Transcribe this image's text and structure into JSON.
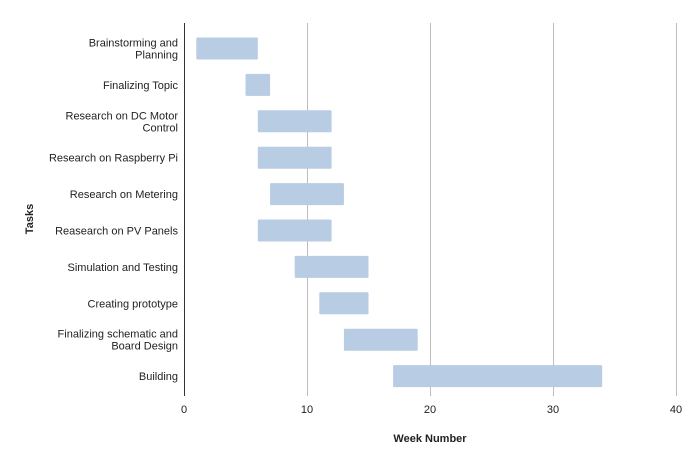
{
  "chart_data": {
    "type": "bar",
    "orientation": "horizontal-gantt",
    "title": "",
    "xlabel": "Week Number",
    "ylabel": "Tasks",
    "xlim": [
      0,
      40
    ],
    "xticks": [
      0,
      10,
      20,
      30,
      40
    ],
    "grid": "vertical",
    "bar_color": "#b8cce4",
    "tasks": [
      {
        "label": "Brainstorming and Planning",
        "lines": [
          "Brainstorming and",
          "Planning"
        ],
        "start": 1,
        "end": 6
      },
      {
        "label": "Finalizing Topic",
        "lines": [
          "Finalizing Topic"
        ],
        "start": 5,
        "end": 7
      },
      {
        "label": "Research on DC Motor Control",
        "lines": [
          "Research on DC Motor",
          "Control"
        ],
        "start": 6,
        "end": 12
      },
      {
        "label": "Research on Raspberry Pi",
        "lines": [
          "Research on Raspberry Pi"
        ],
        "start": 6,
        "end": 12
      },
      {
        "label": "Research on Metering",
        "lines": [
          "Research on Metering"
        ],
        "start": 7,
        "end": 13
      },
      {
        "label": "Reasearch on PV Panels",
        "lines": [
          "Reasearch on PV Panels"
        ],
        "start": 6,
        "end": 12
      },
      {
        "label": "Simulation and Testing",
        "lines": [
          "Simulation and Testing"
        ],
        "start": 9,
        "end": 15
      },
      {
        "label": "Creating prototype",
        "lines": [
          "Creating prototype"
        ],
        "start": 11,
        "end": 15
      },
      {
        "label": "Finalizing schematic and Board Design",
        "lines": [
          "Finalizing schematic and",
          "Board Design"
        ],
        "start": 13,
        "end": 19
      },
      {
        "label": "Building",
        "lines": [
          "Building"
        ],
        "start": 17,
        "end": 34
      }
    ]
  }
}
